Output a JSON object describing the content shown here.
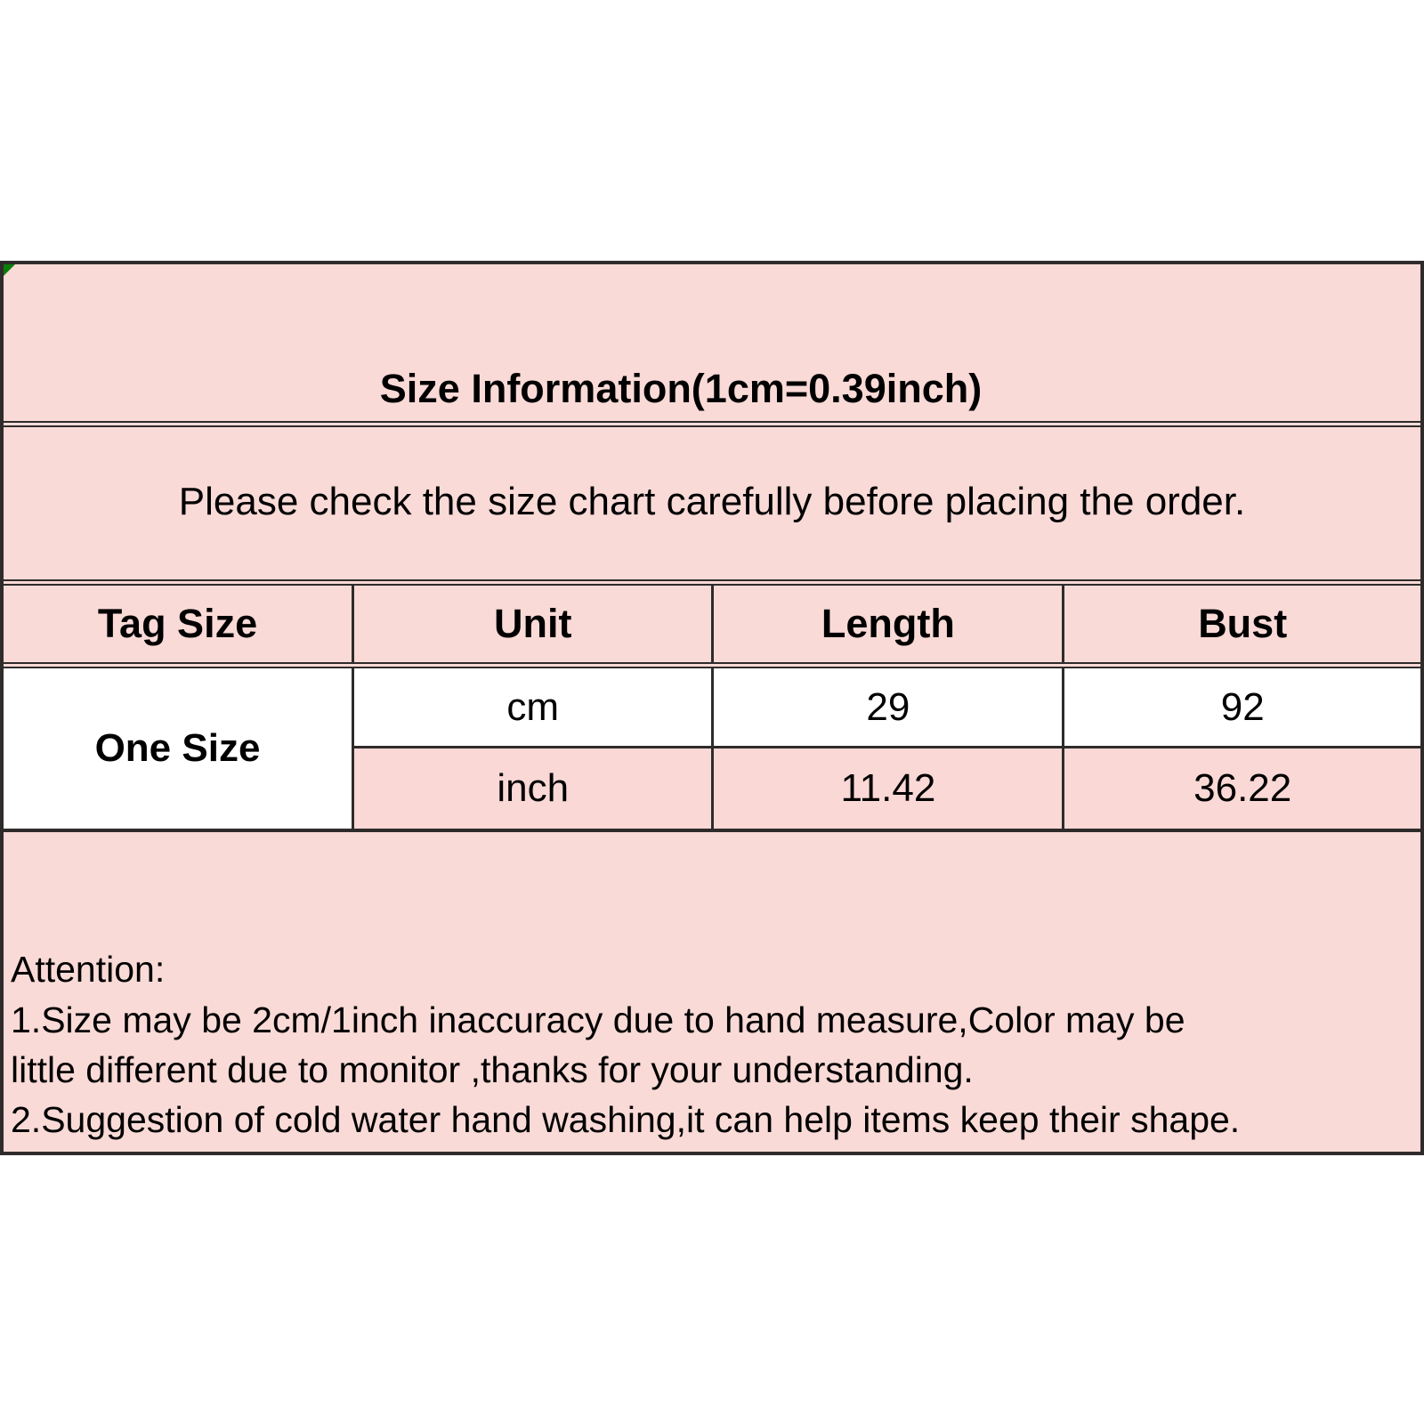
{
  "chart": {
    "title": "Size Information(1cm=0.39inch)",
    "note": "Please check the size chart carefully before placing the order.",
    "columns": [
      "Tag Size",
      "Unit",
      "Length",
      "Bust"
    ],
    "tag_size": "One Size",
    "rows": [
      {
        "unit": "cm",
        "length": "29",
        "bust": "92"
      },
      {
        "unit": "inch",
        "length": "11.42",
        "bust": "36.22"
      }
    ]
  },
  "attention": {
    "heading": "Attention:",
    "lines": [
      "1.Size may be 2cm/1inch inaccuracy due to hand measure,Color may be",
      "little different due to monitor ,thanks for your understanding.",
      "2.Suggestion of cold water hand washing,it can help items keep their shape."
    ]
  },
  "colors": {
    "page_background": "#FFFFFF",
    "pink_background": "#F9DAD7",
    "inch_row_background": "#F9D8D5",
    "border": "#2F2B2B",
    "corner_marker_green": "#0A7D0A",
    "text": "#000000"
  }
}
